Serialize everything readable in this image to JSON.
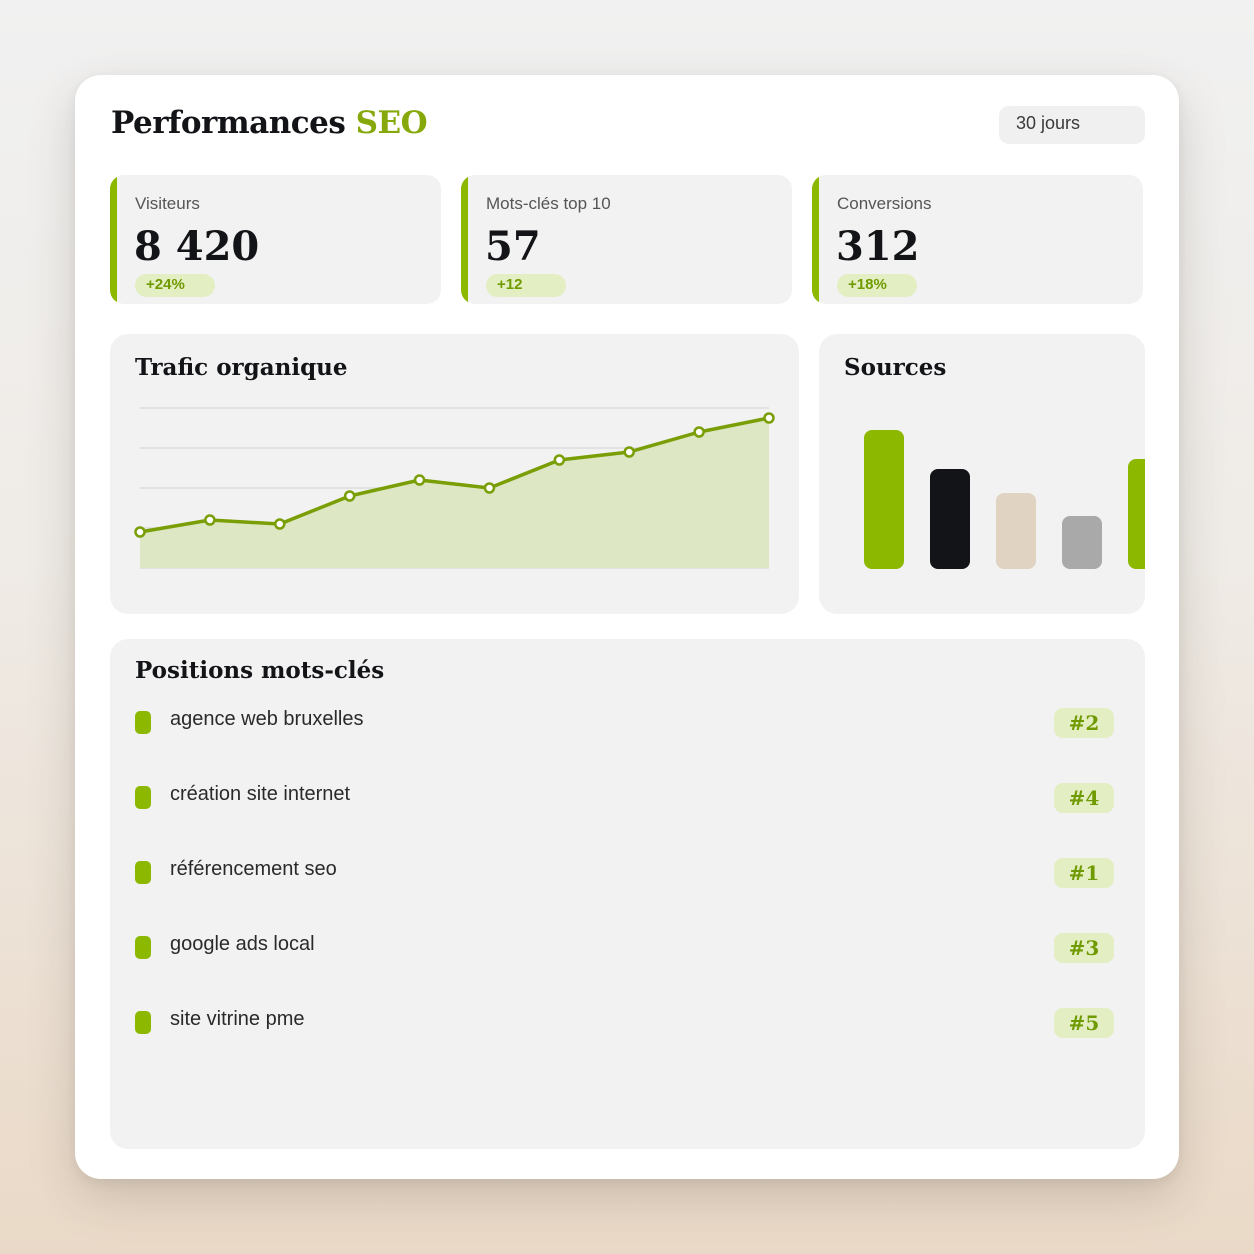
{
  "header": {
    "title_main": "Performances",
    "title_accent": "SEO",
    "period": "30 jours"
  },
  "colors": {
    "accent": "#8cb800",
    "accent_dark": "#7a9e05",
    "badge_bg": "#e3eec2",
    "dark": "#121417",
    "beige": "#e0d3c1",
    "grey": "#a9a9a9"
  },
  "kpis": [
    {
      "label": "Visiteurs",
      "value": "8 420",
      "delta": "+24%"
    },
    {
      "label": "Mots-clés top 10",
      "value": "57",
      "delta": "+12"
    },
    {
      "label": "Conversions",
      "value": "312",
      "delta": "+18%"
    }
  ],
  "traffic": {
    "title": "Trafic organique"
  },
  "sources": {
    "title": "Sources"
  },
  "chart_data": [
    {
      "type": "area",
      "title": "Trafic organique",
      "x": [
        1,
        2,
        3,
        4,
        5,
        6,
        7,
        8,
        9,
        10
      ],
      "values": [
        9,
        12,
        11,
        18,
        22,
        20,
        27,
        29,
        34,
        37.5
      ],
      "ylim": [
        0,
        40
      ],
      "grid": true,
      "gridlines": 4,
      "color": "#7a9e05",
      "fill": "#dde7c3"
    },
    {
      "type": "bar",
      "title": "Sources",
      "values": [
        100,
        72,
        55,
        38,
        79
      ],
      "colors": [
        "#8cb800",
        "#121417",
        "#e0d3c1",
        "#a9a9a9",
        "#8cb800"
      ],
      "ylim": [
        0,
        100
      ]
    }
  ],
  "keywords": {
    "title": "Positions mots-clés",
    "items": [
      {
        "label": "agence web bruxelles",
        "rank": "#2"
      },
      {
        "label": "création site internet",
        "rank": "#4"
      },
      {
        "label": "référencement seo",
        "rank": "#1"
      },
      {
        "label": "google ads local",
        "rank": "#3"
      },
      {
        "label": "site vitrine pme",
        "rank": "#5"
      }
    ]
  }
}
